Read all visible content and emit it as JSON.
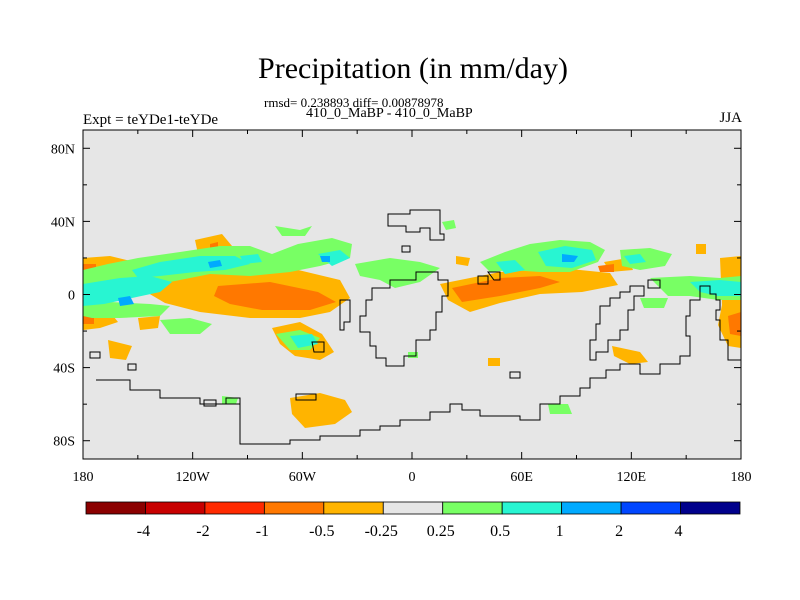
{
  "title": "Precipitation (in mm/day)",
  "subtitle": "rmsd= 0.238893 diff= 0.00878978",
  "center_label": "410_0_MaBP - 410_0_MaBP",
  "left_label": "Expt = teYDe1-teYDe",
  "right_label": "JJA",
  "map": {
    "projection": "cylindrical equidistant",
    "lon_range": [
      -180,
      180
    ],
    "lat_range": [
      -90,
      90
    ],
    "background_color": "#e6e6e6",
    "lat_ticks": [
      {
        "value": 80,
        "label": "80N"
      },
      {
        "value": 40,
        "label": "40N"
      },
      {
        "value": 0,
        "label": "0"
      },
      {
        "value": -40,
        "label": "40S"
      },
      {
        "value": -80,
        "label": "80S"
      }
    ],
    "lon_ticks": [
      {
        "value": -180,
        "label": "180"
      },
      {
        "value": -120,
        "label": "120W"
      },
      {
        "value": -60,
        "label": "60W"
      },
      {
        "value": 0,
        "label": "0"
      },
      {
        "value": 60,
        "label": "60E"
      },
      {
        "value": 120,
        "label": "120E"
      },
      {
        "value": 180,
        "label": "180"
      }
    ]
  },
  "colorbar": {
    "colors": [
      "#8b0000",
      "#c80000",
      "#ff2a00",
      "#ff7800",
      "#ffb400",
      "#e6e6e6",
      "#78ff64",
      "#28f5d2",
      "#00aaff",
      "#0046ff",
      "#00008c"
    ],
    "labels": [
      "-4",
      "-2",
      "-1",
      "-0.5",
      "-0.25",
      "0.25",
      "0.5",
      "1",
      "2",
      "4"
    ]
  },
  "chart_data": {
    "type": "heatmap",
    "variable": "Precipitation difference",
    "units": "mm/day",
    "season": "JJA",
    "regions": [
      {
        "lon": -170,
        "lat": 5,
        "value": 0.7
      },
      {
        "lon": -150,
        "lat": 8,
        "value": 0.6
      },
      {
        "lon": -120,
        "lat": 13,
        "value": 0.7
      },
      {
        "lon": -90,
        "lat": 16,
        "value": 0.5
      },
      {
        "lon": -25,
        "lat": 17,
        "value": 0.5
      },
      {
        "lon": 70,
        "lat": 18,
        "value": 0.7
      },
      {
        "lon": 100,
        "lat": 12,
        "value": 0.4
      },
      {
        "lon": 176,
        "lat": 3,
        "value": 0.7
      },
      {
        "lon": -130,
        "lat": 0,
        "value": -0.9
      },
      {
        "lon": -85,
        "lat": 0,
        "value": -0.8
      },
      {
        "lon": 40,
        "lat": 0,
        "value": -0.8
      },
      {
        "lon": 85,
        "lat": 7,
        "value": -0.3
      },
      {
        "lon": 178,
        "lat": -20,
        "value": -0.8
      },
      {
        "lon": -175,
        "lat": 15,
        "value": -0.4
      },
      {
        "lon": -40,
        "lat": -30,
        "value": 0.3
      },
      {
        "lon": 120,
        "lat": -33,
        "value": -0.3
      }
    ]
  }
}
